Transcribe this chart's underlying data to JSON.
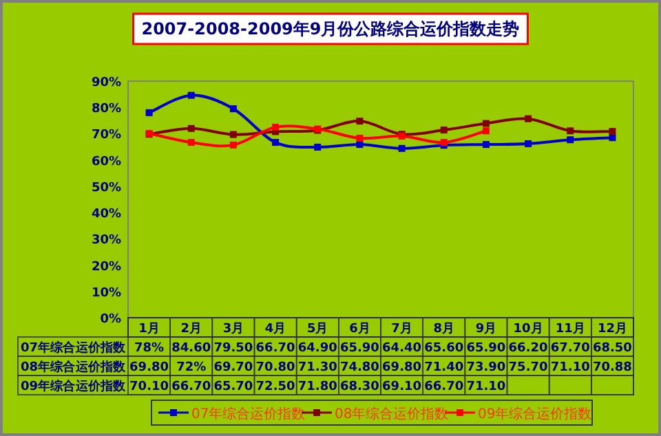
{
  "chart_data": {
    "type": "line",
    "title": "2007-2008-2009年9月份公路综合运价指数走势",
    "categories": [
      "1月",
      "2月",
      "3月",
      "4月",
      "5月",
      "6月",
      "7月",
      "8月",
      "9月",
      "10月",
      "11月",
      "12月"
    ],
    "ylim": [
      0,
      90
    ],
    "yticks": [
      {
        "value": 0,
        "label": "0%"
      },
      {
        "value": 10,
        "label": "10%"
      },
      {
        "value": 20,
        "label": "20%"
      },
      {
        "value": 30,
        "label": "30%"
      },
      {
        "value": 40,
        "label": "40%"
      },
      {
        "value": 50,
        "label": "50%"
      },
      {
        "value": 60,
        "label": "60%"
      },
      {
        "value": 70,
        "label": "70%"
      },
      {
        "value": 80,
        "label": "80%"
      },
      {
        "value": 90,
        "label": "90%"
      }
    ],
    "grid": false,
    "legend": "bottom",
    "marker": "square",
    "series": [
      {
        "name": "07年综合运价指数",
        "color": "#0000cc",
        "values": [
          78,
          84.6,
          79.5,
          66.7,
          64.9,
          65.9,
          64.4,
          65.6,
          65.9,
          66.2,
          67.7,
          68.5
        ],
        "value_labels": [
          "78%",
          "84.60",
          "79.50",
          "66.70",
          "64.90",
          "65.90",
          "64.40",
          "65.60",
          "65.90",
          "66.20",
          "67.70",
          "68.50"
        ]
      },
      {
        "name": "08年综合运价指数",
        "color": "#800000",
        "values": [
          69.8,
          72,
          69.7,
          70.8,
          71.3,
          74.8,
          69.8,
          71.4,
          73.9,
          75.7,
          71.1,
          70.88
        ],
        "value_labels": [
          "69.80",
          "72%",
          "69.70",
          "70.80",
          "71.30",
          "74.80",
          "69.80",
          "71.40",
          "73.90",
          "75.70",
          "71.10",
          "70.88"
        ]
      },
      {
        "name": "09年综合运价指数",
        "color": "#ff0000",
        "values": [
          70.1,
          66.7,
          65.7,
          72.5,
          71.8,
          68.3,
          69.1,
          66.7,
          71.1,
          null,
          null,
          null
        ],
        "value_labels": [
          "70.10",
          "66.70",
          "65.70",
          "72.50",
          "71.80",
          "68.30",
          "69.10",
          "66.70",
          "71.10",
          null,
          null,
          null
        ]
      }
    ]
  }
}
